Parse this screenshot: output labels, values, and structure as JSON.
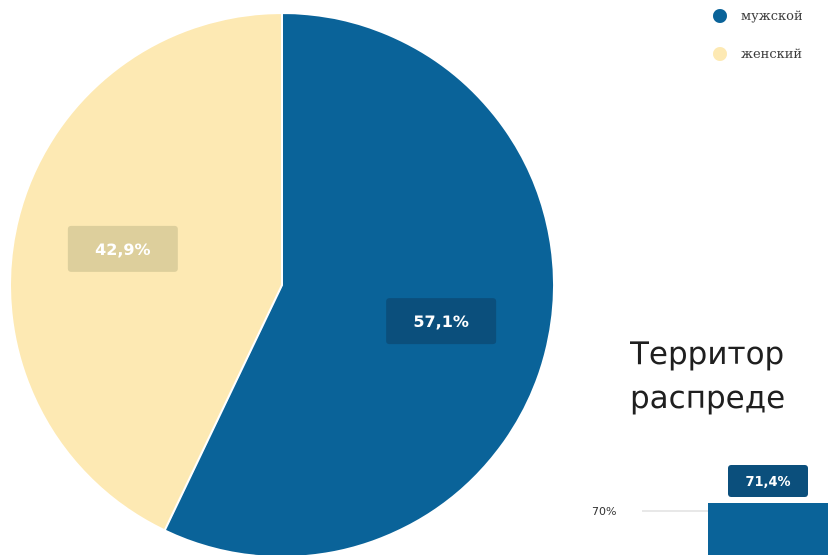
{
  "chart_data": [
    {
      "type": "pie",
      "slices": [
        {
          "label": "мужской",
          "value": 57.1,
          "value_label": "57,1%",
          "color": "#0a6399"
        },
        {
          "label": "женский",
          "value": 42.9,
          "value_label": "42,9%",
          "color": "#fde9b3"
        }
      ],
      "legend": {
        "placement": "top-right"
      }
    },
    {
      "type": "bar",
      "title_lines": [
        "Территор",
        "распреде"
      ],
      "tick_labels": [
        "70%"
      ],
      "bars": [
        {
          "value": 71.4,
          "value_label": "71,4%",
          "color": "#0a6399"
        }
      ]
    }
  ]
}
